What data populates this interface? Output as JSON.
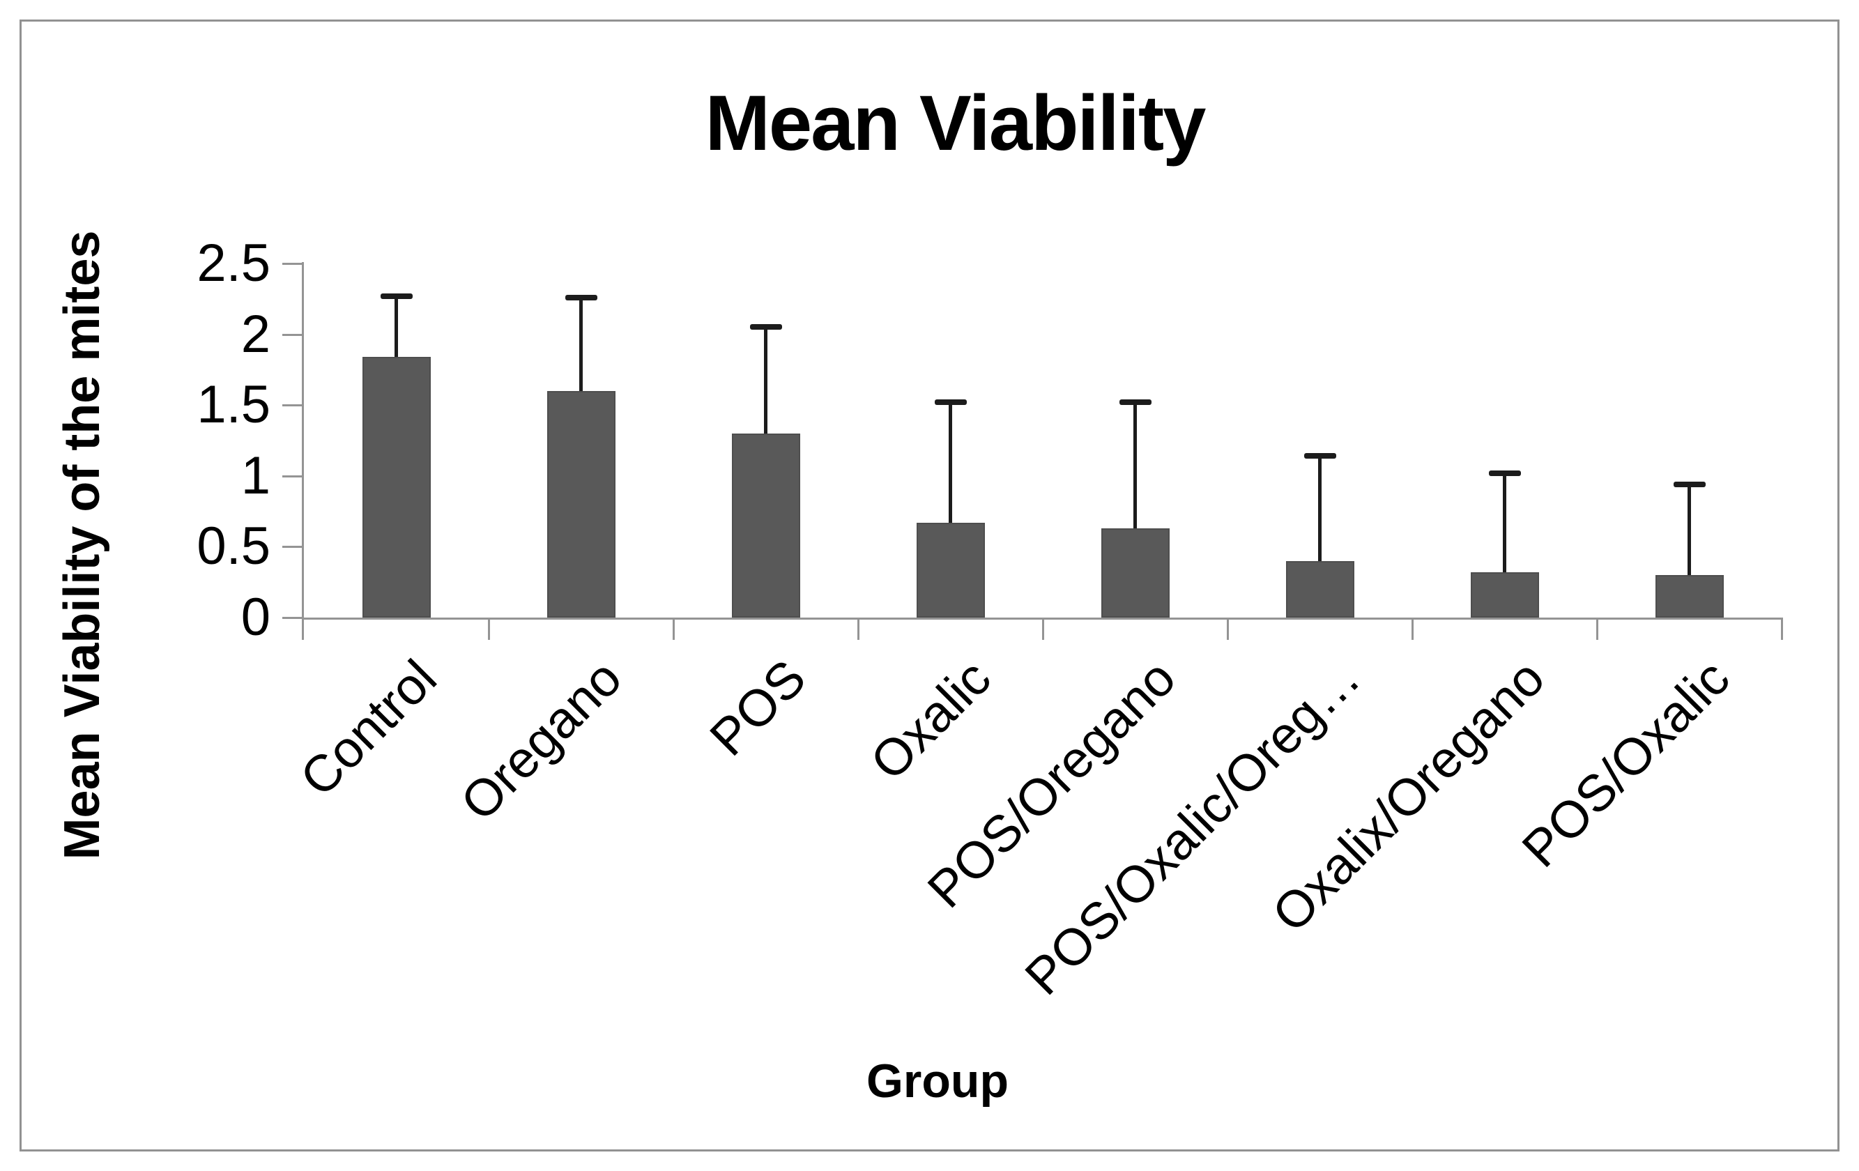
{
  "chart_data": {
    "type": "bar",
    "title": "Mean Viability",
    "xlabel": "Group",
    "ylabel": "Mean Viability of the mites",
    "categories": [
      "Control",
      "Oregano",
      "POS",
      "Oxalic",
      "POS/Oregano",
      "POS/Oxalic/Oreg…",
      "Oxalix/Oregano",
      "POS/Oxalic"
    ],
    "series": [
      {
        "name": "Mean Viability",
        "values": [
          1.84,
          1.6,
          1.3,
          0.67,
          0.63,
          0.4,
          0.32,
          0.3
        ],
        "error_bar_tops": [
          2.27,
          2.26,
          2.05,
          1.52,
          1.52,
          1.14,
          1.02,
          0.94
        ]
      }
    ],
    "y_ticks": [
      0,
      0.5,
      1,
      1.5,
      2,
      2.5
    ],
    "ylim": [
      0,
      2.5
    ],
    "grid": false,
    "legend_position": "none",
    "bar_color": "#595959",
    "error_bar_color": "#1c1c1c",
    "axis_color": "#949494",
    "x_tick_label_rotation_deg": 45
  }
}
